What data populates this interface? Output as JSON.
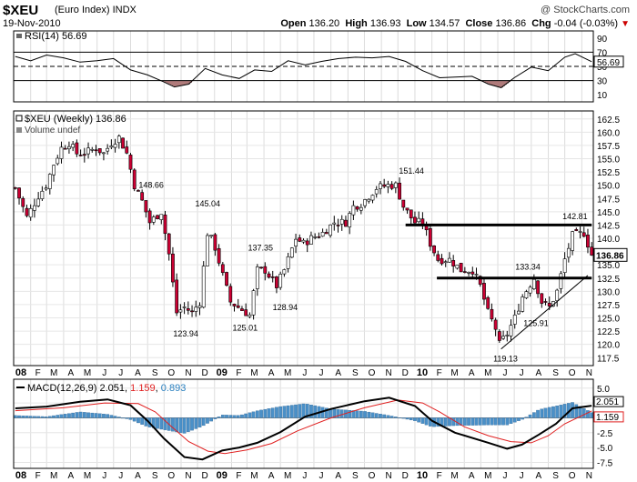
{
  "header": {
    "symbol": "$XEU",
    "name": "(Euro Index)",
    "exchange": "INDX",
    "date": "19-Nov-2010",
    "watermark": "@ StockCharts.com",
    "open_label": "Open",
    "open": "136.20",
    "high_label": "High",
    "high": "136.93",
    "low_label": "Low",
    "low": "134.57",
    "close_label": "Close",
    "close": "136.86",
    "chg_label": "Chg",
    "chg": "-0.04 (-0.03%)",
    "chg_icon": "down-triangle-icon",
    "down_color": "#cc0033",
    "up_color": "#ffffff"
  },
  "rsi_panel": {
    "legend": "RSI(14) 56.69",
    "current": "56.69",
    "yticks": [
      "90",
      "70",
      "50",
      "30",
      "10"
    ]
  },
  "price_panel": {
    "legend": "$XEU (Weekly) 136.86",
    "volume_legend": "Volume undef",
    "current_value": "136.86",
    "yticks": [
      "162.5",
      "160.0",
      "157.5",
      "155.0",
      "152.5",
      "150.0",
      "147.5",
      "145.0",
      "142.5",
      "140.0",
      "137.5",
      "135.0",
      "132.5",
      "130.0",
      "127.5",
      "125.0",
      "122.5",
      "120.0",
      "117.5"
    ],
    "annotations": [
      "148.66",
      "145.04",
      "123.94",
      "137.35",
      "125.01",
      "128.94",
      "151.44",
      "142.81",
      "133.34",
      "125.91",
      "119.13"
    ]
  },
  "macd_panel": {
    "legend_label": "MACD(12,26,9)",
    "macd_value": "2.051",
    "signal_value": "1.159",
    "hist_value": "0.893",
    "macd_badge": "2.051",
    "signal_badge": "1.159",
    "yticks": [
      "5.0",
      "2.5",
      "0.0",
      "-2.5",
      "-5.0",
      "-7.5"
    ]
  },
  "x_axis": {
    "labels": [
      "08",
      "F",
      "M",
      "A",
      "M",
      "J",
      "J",
      "A",
      "S",
      "O",
      "N",
      "D",
      "09",
      "F",
      "M",
      "A",
      "M",
      "J",
      "J",
      "A",
      "S",
      "O",
      "N",
      "D",
      "10",
      "F",
      "M",
      "A",
      "M",
      "J",
      "J",
      "A",
      "S",
      "O",
      "N"
    ]
  },
  "chart_data": {
    "type": "candlestick",
    "title": "$XEU (Euro Index) INDX",
    "period": "Weekly",
    "date_range": [
      "2008-01",
      "2010-11-19"
    ],
    "ylim": [
      116,
      164
    ],
    "price_path": [
      [
        "2008-01-04",
        149.5
      ],
      [
        "2008-01-25",
        144
      ],
      [
        "2008-02-15",
        148
      ],
      [
        "2008-02-29",
        150
      ],
      [
        "2008-03-14",
        154
      ],
      [
        "2008-03-28",
        157
      ],
      [
        "2008-04-11",
        158
      ],
      [
        "2008-04-25",
        156
      ],
      [
        "2008-05-09",
        156
      ],
      [
        "2008-05-30",
        157
      ],
      [
        "2008-06-13",
        156
      ],
      [
        "2008-06-27",
        158
      ],
      [
        "2008-07-11",
        159
      ],
      [
        "2008-07-25",
        156
      ],
      [
        "2008-08-08",
        150
      ],
      [
        "2008-08-22",
        147
      ],
      [
        "2008-09-05",
        143
      ],
      [
        "2008-09-26",
        145
      ],
      [
        "2008-10-10",
        137
      ],
      [
        "2008-10-24",
        126
      ],
      [
        "2008-11-07",
        127
      ],
      [
        "2008-11-21",
        126
      ],
      [
        "2008-12-05",
        128
      ],
      [
        "2008-12-19",
        141
      ],
      [
        "2008-12-31",
        139
      ],
      [
        "2009-01-16",
        133
      ],
      [
        "2009-01-30",
        128
      ],
      [
        "2009-02-13",
        127
      ],
      [
        "2009-03-06",
        125.5
      ],
      [
        "2009-03-20",
        134
      ],
      [
        "2009-04-03",
        134
      ],
      [
        "2009-04-24",
        131
      ],
      [
        "2009-05-08",
        134
      ],
      [
        "2009-05-29",
        140
      ],
      [
        "2009-06-12",
        139
      ],
      [
        "2009-06-26",
        140
      ],
      [
        "2009-07-17",
        141
      ],
      [
        "2009-08-07",
        143
      ],
      [
        "2009-08-28",
        143
      ],
      [
        "2009-09-11",
        146
      ],
      [
        "2009-09-25",
        146.5
      ],
      [
        "2009-10-09",
        148
      ],
      [
        "2009-10-23",
        149.5
      ],
      [
        "2009-11-13",
        150
      ],
      [
        "2009-11-27",
        150
      ],
      [
        "2009-12-11",
        146
      ],
      [
        "2009-12-31",
        143
      ],
      [
        "2010-01-15",
        143
      ],
      [
        "2010-01-29",
        139
      ],
      [
        "2010-02-12",
        136
      ],
      [
        "2010-03-05",
        136
      ],
      [
        "2010-03-26",
        134
      ],
      [
        "2010-04-16",
        134
      ],
      [
        "2010-04-30",
        131
      ],
      [
        "2010-05-14",
        126
      ],
      [
        "2010-05-28",
        123
      ],
      [
        "2010-06-04",
        120
      ],
      [
        "2010-06-18",
        122
      ],
      [
        "2010-07-02",
        125
      ],
      [
        "2010-07-16",
        129
      ],
      [
        "2010-08-06",
        132.5
      ],
      [
        "2010-08-20",
        128
      ],
      [
        "2010-09-03",
        127
      ],
      [
        "2010-09-17",
        130
      ],
      [
        "2010-10-01",
        136
      ],
      [
        "2010-10-15",
        140.5
      ],
      [
        "2010-11-05",
        141
      ],
      [
        "2010-11-19",
        136.86
      ]
    ],
    "horizontal_lines": [
      {
        "y": 142.5,
        "from": "2009-12-15",
        "to": "2010-11-19"
      },
      {
        "y": 132.5,
        "from": "2010-02-10",
        "to": "2010-11-19"
      }
    ],
    "trendline": {
      "from": [
        "2010-06-07",
        119.13
      ],
      "to": [
        "2010-11-12",
        133
      ]
    },
    "rsi": {
      "ylim": [
        0,
        100
      ],
      "reference_lines": [
        70,
        50,
        30
      ],
      "path": [
        [
          "2008-01-04",
          64
        ],
        [
          "2008-02-01",
          58
        ],
        [
          "2008-03-01",
          66
        ],
        [
          "2008-04-01",
          62
        ],
        [
          "2008-05-01",
          56
        ],
        [
          "2008-06-01",
          58
        ],
        [
          "2008-07-01",
          61
        ],
        [
          "2008-08-01",
          45
        ],
        [
          "2008-09-01",
          38
        ],
        [
          "2008-10-01",
          28
        ],
        [
          "2008-10-20",
          21
        ],
        [
          "2008-11-15",
          25
        ],
        [
          "2008-12-15",
          47
        ],
        [
          "2009-01-15",
          38
        ],
        [
          "2009-02-15",
          33
        ],
        [
          "2009-03-15",
          45
        ],
        [
          "2009-04-15",
          43
        ],
        [
          "2009-05-15",
          58
        ],
        [
          "2009-06-15",
          52
        ],
        [
          "2009-07-15",
          57
        ],
        [
          "2009-08-15",
          61
        ],
        [
          "2009-09-15",
          63
        ],
        [
          "2009-10-15",
          62
        ],
        [
          "2009-11-15",
          64
        ],
        [
          "2009-12-15",
          57
        ],
        [
          "2010-01-15",
          44
        ],
        [
          "2010-02-15",
          34
        ],
        [
          "2010-03-15",
          35
        ],
        [
          "2010-04-15",
          36
        ],
        [
          "2010-05-15",
          25
        ],
        [
          "2010-06-07",
          20
        ],
        [
          "2010-07-01",
          34
        ],
        [
          "2010-08-01",
          49
        ],
        [
          "2010-09-01",
          44
        ],
        [
          "2010-10-01",
          63
        ],
        [
          "2010-10-20",
          68
        ],
        [
          "2010-11-19",
          56.69
        ]
      ]
    },
    "macd": {
      "ylim": [
        -8.5,
        6.5
      ],
      "macd_line": [
        [
          "2008-01-04",
          1.6
        ],
        [
          "2008-03-01",
          1.9
        ],
        [
          "2008-05-01",
          2.7
        ],
        [
          "2008-06-20",
          3.1
        ],
        [
          "2008-08-01",
          2.1
        ],
        [
          "2008-09-01",
          -0.5
        ],
        [
          "2008-10-01",
          -3.5
        ],
        [
          "2008-11-07",
          -6.6
        ],
        [
          "2008-12-10",
          -7.0
        ],
        [
          "2009-01-15",
          -5.5
        ],
        [
          "2009-02-15",
          -5.0
        ],
        [
          "2009-03-20",
          -4.2
        ],
        [
          "2009-05-01",
          -2.4
        ],
        [
          "2009-06-15",
          0.2
        ],
        [
          "2009-08-01",
          1.5
        ],
        [
          "2009-10-01",
          2.8
        ],
        [
          "2009-11-15",
          3.4
        ],
        [
          "2010-01-01",
          2.0
        ],
        [
          "2010-02-01",
          -0.5
        ],
        [
          "2010-03-15",
          -2.5
        ],
        [
          "2010-05-15",
          -4.2
        ],
        [
          "2010-06-18",
          -5.2
        ],
        [
          "2010-07-15",
          -4.5
        ],
        [
          "2010-08-15",
          -2.8
        ],
        [
          "2010-09-15",
          -1.0
        ],
        [
          "2010-10-15",
          1.6
        ],
        [
          "2010-11-19",
          2.051
        ]
      ],
      "signal_line": [
        [
          "2008-01-04",
          1.2
        ],
        [
          "2008-04-01",
          1.7
        ],
        [
          "2008-06-15",
          2.5
        ],
        [
          "2008-08-15",
          2.4
        ],
        [
          "2008-09-15",
          1.0
        ],
        [
          "2008-10-15",
          -1.5
        ],
        [
          "2008-11-15",
          -4.0
        ],
        [
          "2008-12-20",
          -5.6
        ],
        [
          "2009-01-20",
          -6.0
        ],
        [
          "2009-03-01",
          -5.4
        ],
        [
          "2009-04-15",
          -4.3
        ],
        [
          "2009-06-01",
          -2.2
        ],
        [
          "2009-08-01",
          0.0
        ],
        [
          "2009-10-01",
          1.7
        ],
        [
          "2009-12-01",
          3.0
        ],
        [
          "2010-01-15",
          2.5
        ],
        [
          "2010-02-15",
          1.0
        ],
        [
          "2010-04-01",
          -1.5
        ],
        [
          "2010-05-15",
          -3.0
        ],
        [
          "2010-06-25",
          -4.0
        ],
        [
          "2010-08-01",
          -4.2
        ],
        [
          "2010-09-01",
          -3.0
        ],
        [
          "2010-10-01",
          -1.0
        ],
        [
          "2010-11-19",
          1.159
        ]
      ],
      "histogram": [
        [
          "2008-01-04",
          0.4
        ],
        [
          "2008-03-01",
          0.2
        ],
        [
          "2008-05-01",
          1.0
        ],
        [
          "2008-06-20",
          0.6
        ],
        [
          "2008-08-01",
          -0.3
        ],
        [
          "2008-09-01",
          -1.5
        ],
        [
          "2008-10-01",
          -2.0
        ],
        [
          "2008-11-07",
          -2.6
        ],
        [
          "2008-12-10",
          -1.4
        ],
        [
          "2009-01-15",
          0.5
        ],
        [
          "2009-02-15",
          0.4
        ],
        [
          "2009-03-20",
          1.2
        ],
        [
          "2009-05-01",
          1.9
        ],
        [
          "2009-06-15",
          2.4
        ],
        [
          "2009-08-01",
          1.5
        ],
        [
          "2009-10-01",
          1.1
        ],
        [
          "2009-11-15",
          0.4
        ],
        [
          "2010-01-01",
          -0.5
        ],
        [
          "2010-02-01",
          -1.5
        ],
        [
          "2010-03-15",
          -1.3
        ],
        [
          "2010-05-15",
          -1.2
        ],
        [
          "2010-06-18",
          -1.2
        ],
        [
          "2010-07-15",
          -0.3
        ],
        [
          "2010-08-15",
          1.4
        ],
        [
          "2010-09-15",
          2.0
        ],
        [
          "2010-10-15",
          2.6
        ],
        [
          "2010-11-19",
          0.893
        ]
      ]
    }
  }
}
